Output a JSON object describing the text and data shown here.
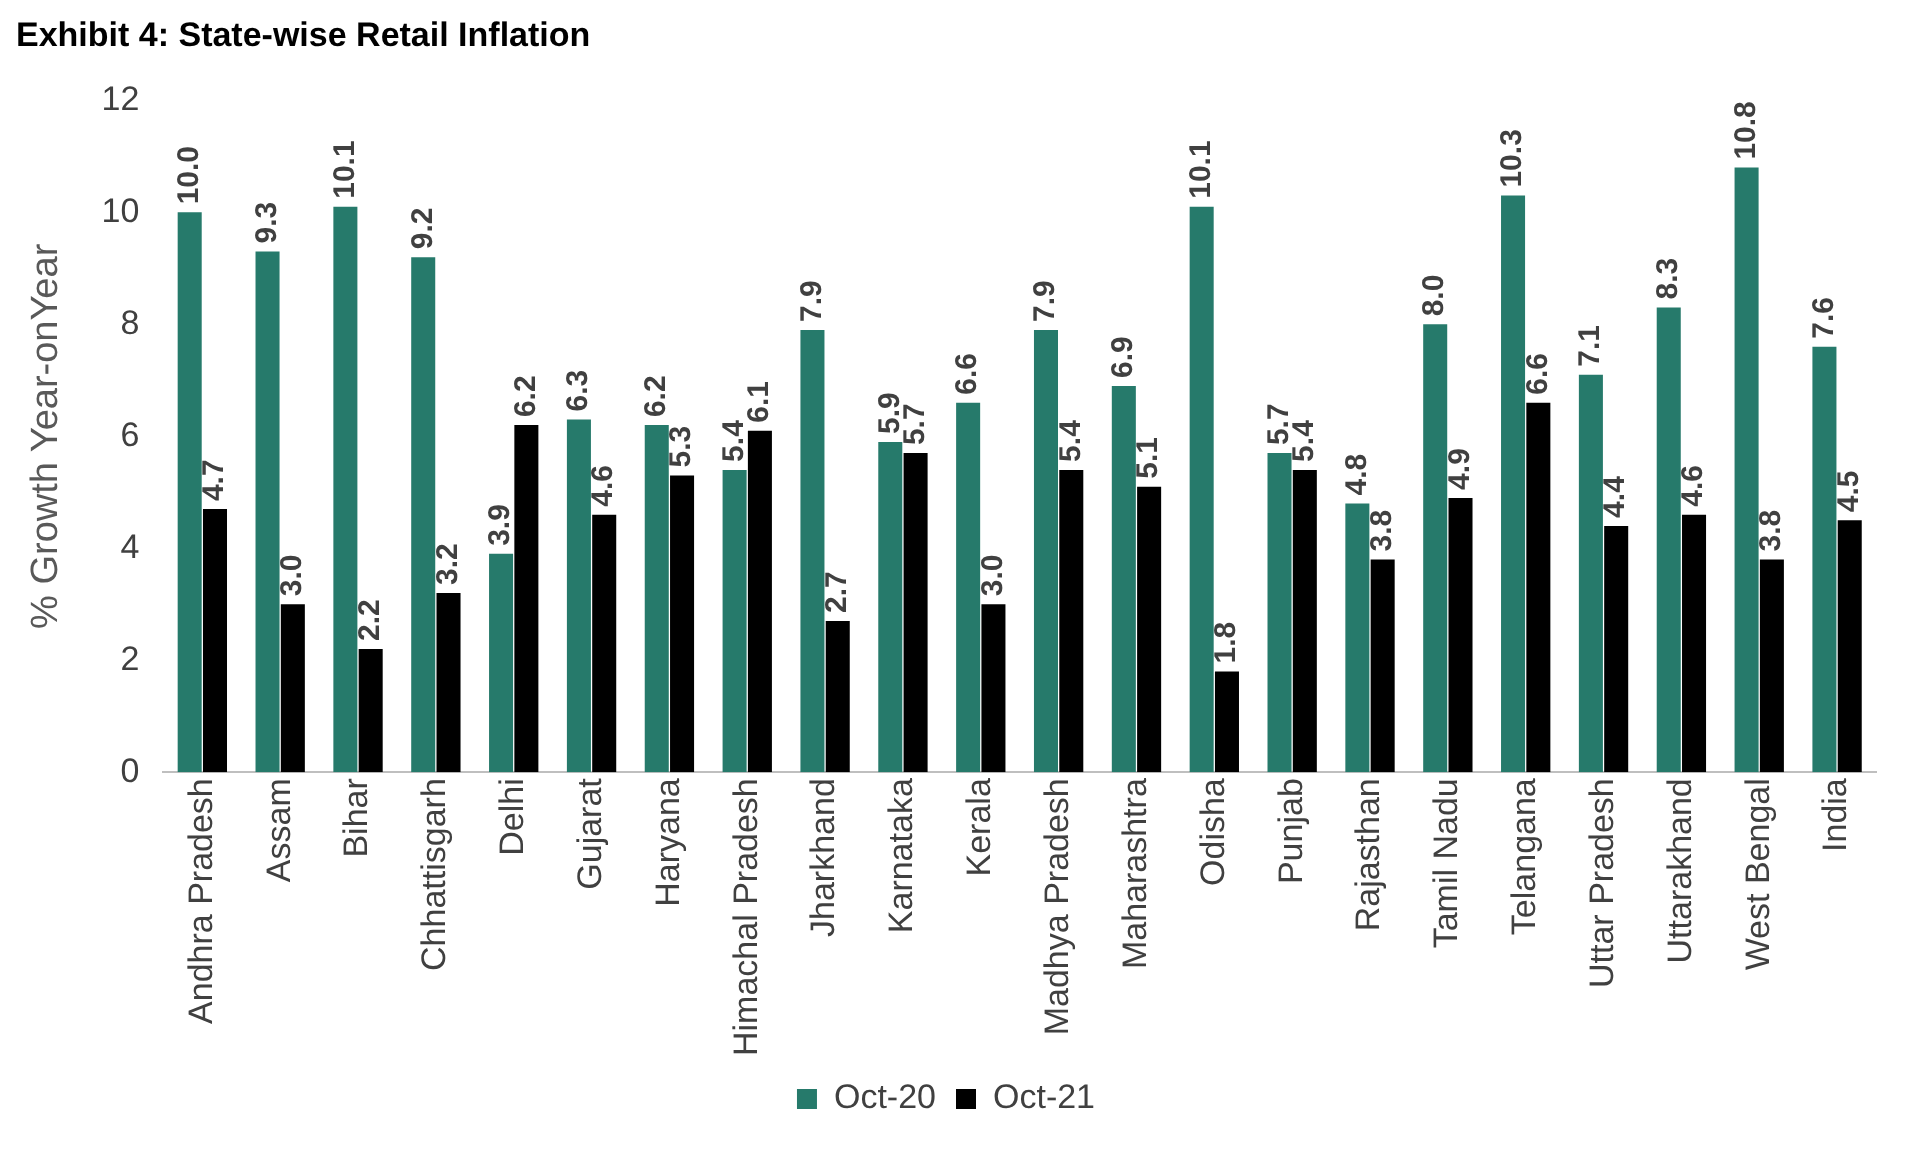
{
  "chart_data": {
    "type": "bar",
    "title": "Exhibit 4: State-wise Retail Inflation",
    "ylabel": "% Growth Year-onYear",
    "categories": [
      "Andhra Pradesh",
      "Assam",
      "Bihar",
      "Chhattisgarh",
      "Delhi",
      "Gujarat",
      "Haryana",
      "Himachal Pradesh",
      "Jharkhand",
      "Karnataka",
      "Kerala",
      "Madhya Pradesh",
      "Maharashtra",
      "Odisha",
      "Punjab",
      "Rajasthan",
      "Tamil Nadu",
      "Telangana",
      "Uttar Pradesh",
      "Uttarakhand",
      "West Bengal",
      "India"
    ],
    "series": [
      {
        "name": "Oct-20",
        "color": "#267a6b",
        "values": [
          10.0,
          9.3,
          10.1,
          9.2,
          3.9,
          6.3,
          6.2,
          5.4,
          7.9,
          5.9,
          6.6,
          7.9,
          6.9,
          10.1,
          5.7,
          4.8,
          8.0,
          10.3,
          7.1,
          8.3,
          10.8,
          7.6
        ],
        "value_labels": [
          "10.0",
          "9.3",
          "10.1",
          "9.2",
          "3.9",
          "6.3",
          "6.2",
          "5.4",
          "7.9",
          "5.9",
          "6.6",
          "7.9",
          "6.9",
          "10.1",
          "5.7",
          "4.8",
          "8.0",
          "10.3",
          "7.1",
          "8.3",
          "10.8",
          "7.6"
        ]
      },
      {
        "name": "Oct-21",
        "color": "#000000",
        "values": [
          4.7,
          3.0,
          2.2,
          3.2,
          6.2,
          4.6,
          5.3,
          6.1,
          2.7,
          5.7,
          3.0,
          5.4,
          5.1,
          1.8,
          5.4,
          3.8,
          4.9,
          6.6,
          4.4,
          4.6,
          3.8,
          4.5
        ],
        "value_labels": [
          "4.7",
          "3.0",
          "2.2",
          "3.2",
          "6.2",
          "4.6",
          "5.3",
          "6.1",
          "2.7",
          "5.7",
          "3.0",
          "5.4",
          "5.1",
          "1.8",
          "5.4",
          "3.8",
          "4.9",
          "6.6",
          "4.4",
          "4.6",
          "3.8",
          "4.5"
        ]
      }
    ],
    "ylim": [
      0,
      12
    ],
    "yticks": [
      0,
      2,
      4,
      6,
      8,
      10,
      12
    ],
    "grid": false,
    "legend": "bottom"
  }
}
